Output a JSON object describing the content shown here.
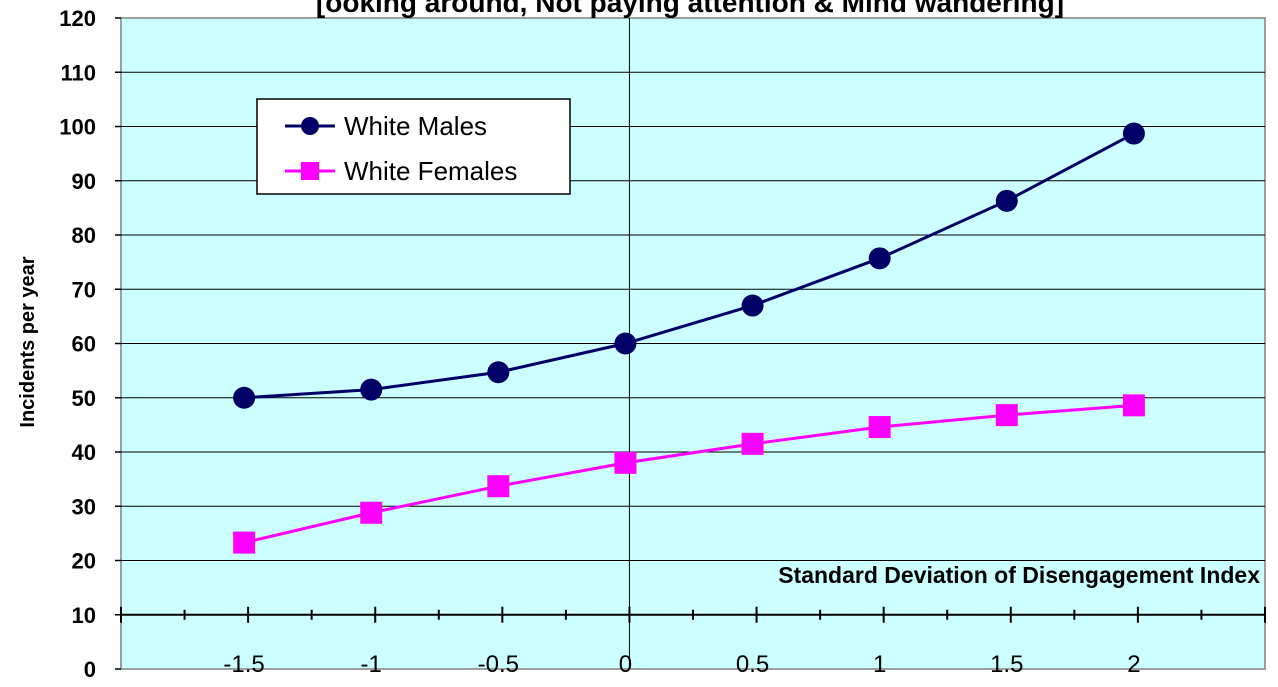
{
  "chart_data": {
    "type": "line",
    "title": "[ooking around, Not paying attention & Mind wandering]",
    "xlabel": "Standard Deviation of Disengagement Index",
    "ylabel": "Incidents per year",
    "x": [
      -1.5,
      -1,
      -0.5,
      0,
      0.5,
      1,
      1.5,
      2
    ],
    "x_tick_labels": [
      "-1.5",
      "-1",
      "-0.5",
      "0",
      "0.5",
      "1",
      "1.5",
      "2"
    ],
    "y_tick_labels": [
      "0",
      "10",
      "20",
      "30",
      "40",
      "50",
      "60",
      "70",
      "80",
      "90",
      "100",
      "110",
      "120"
    ],
    "ylim": [
      0,
      120
    ],
    "xlim": [
      -2,
      2.5
    ],
    "grid": true,
    "legend_position": "top-left",
    "plot_background": "#ccffff",
    "series": [
      {
        "name": "White Males",
        "marker": "circle",
        "color": "#000066",
        "values": [
          50,
          51.5,
          54.7,
          60,
          67,
          75.7,
          86.3,
          98.7
        ]
      },
      {
        "name": "White Females",
        "marker": "square",
        "color": "#ff00ff",
        "values": [
          23.3,
          28.8,
          33.7,
          38,
          41.5,
          44.6,
          46.8,
          48.6
        ]
      }
    ]
  }
}
